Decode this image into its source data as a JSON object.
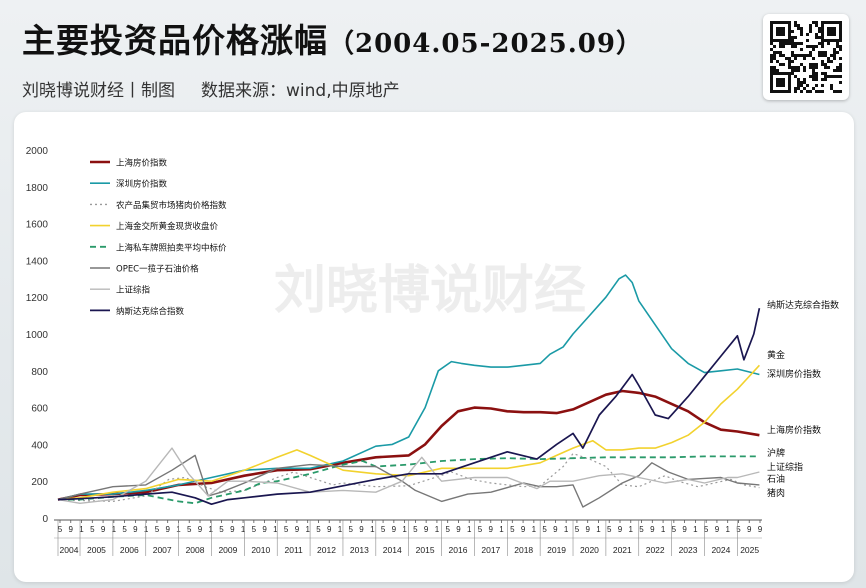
{
  "header": {
    "title": "主要投资品价格涨幅",
    "range": "（2004.05-2025.09）",
    "author": "刘晓博说财经丨制图",
    "source": "数据来源：wind,中原地产"
  },
  "watermark": "刘晓博说财经",
  "qr_icon": "qr-code-icon",
  "chart_data": {
    "type": "line",
    "title": "主要投资品价格涨幅",
    "ylim": [
      0,
      2000
    ],
    "yticks": [
      0,
      200,
      400,
      600,
      800,
      1000,
      1200,
      1400,
      1600,
      1800,
      2000
    ],
    "xlim": [
      2004.33,
      2025.75
    ],
    "years": [
      "2004",
      "2005",
      "2006",
      "2007",
      "2008",
      "2009",
      "2010",
      "2011",
      "2012",
      "2013",
      "2014",
      "2015",
      "2016",
      "2017",
      "2018",
      "2019",
      "2020",
      "2021",
      "2022",
      "2023",
      "2024",
      "2025"
    ],
    "month_marks": [
      "5",
      "9",
      "1",
      "5",
      "9",
      "1",
      "5",
      "9",
      "1",
      "5",
      "9",
      "1",
      "5",
      "9",
      "1",
      "5",
      "9",
      "1",
      "5",
      "9",
      "1",
      "5",
      "9",
      "1",
      "5",
      "9",
      "1",
      "5",
      "9",
      "1",
      "5",
      "9",
      "1",
      "5",
      "9",
      "1",
      "5",
      "9",
      "1",
      "5",
      "9",
      "1",
      "5",
      "9",
      "1",
      "5",
      "9",
      "1",
      "5",
      "9",
      "1",
      "5",
      "9",
      "1",
      "5",
      "9",
      "1",
      "5",
      "9",
      "1",
      "5",
      "9",
      "1",
      "5",
      "9",
      "9"
    ],
    "grid": false,
    "legend_position": "top-left",
    "series": [
      {
        "name": "上海房价指数",
        "color": "#8b1010",
        "width": 2.6,
        "dash": "",
        "end_label": "上海房价指数",
        "points": [
          [
            2004.33,
            100
          ],
          [
            2005.0,
            125
          ],
          [
            2006.0,
            130
          ],
          [
            2007.0,
            140
          ],
          [
            2008.0,
            180
          ],
          [
            2009.0,
            190
          ],
          [
            2010.0,
            230
          ],
          [
            2011.0,
            260
          ],
          [
            2012.0,
            265
          ],
          [
            2013.0,
            300
          ],
          [
            2014.0,
            330
          ],
          [
            2015.0,
            340
          ],
          [
            2015.5,
            400
          ],
          [
            2016.0,
            500
          ],
          [
            2016.5,
            580
          ],
          [
            2017.0,
            600
          ],
          [
            2017.5,
            595
          ],
          [
            2018.0,
            580
          ],
          [
            2018.5,
            575
          ],
          [
            2019.0,
            575
          ],
          [
            2019.5,
            570
          ],
          [
            2020.0,
            590
          ],
          [
            2020.5,
            630
          ],
          [
            2021.0,
            670
          ],
          [
            2021.5,
            690
          ],
          [
            2022.0,
            680
          ],
          [
            2022.5,
            660
          ],
          [
            2023.0,
            620
          ],
          [
            2023.5,
            580
          ],
          [
            2024.0,
            520
          ],
          [
            2024.5,
            480
          ],
          [
            2025.0,
            470
          ],
          [
            2025.67,
            450
          ]
        ]
      },
      {
        "name": "深圳房价指数",
        "color": "#1a9aa6",
        "width": 1.6,
        "dash": "",
        "end_label": "深圳房价指数",
        "points": [
          [
            2004.33,
            100
          ],
          [
            2005.0,
            130
          ],
          [
            2006.0,
            130
          ],
          [
            2007.0,
            150
          ],
          [
            2008.0,
            180
          ],
          [
            2009.0,
            220
          ],
          [
            2010.0,
            260
          ],
          [
            2011.0,
            270
          ],
          [
            2012.0,
            270
          ],
          [
            2013.0,
            310
          ],
          [
            2014.0,
            390
          ],
          [
            2014.5,
            400
          ],
          [
            2015.0,
            440
          ],
          [
            2015.5,
            600
          ],
          [
            2015.9,
            800
          ],
          [
            2016.3,
            850
          ],
          [
            2016.6,
            840
          ],
          [
            2017.0,
            830
          ],
          [
            2017.5,
            820
          ],
          [
            2018.0,
            820
          ],
          [
            2018.5,
            830
          ],
          [
            2019.0,
            840
          ],
          [
            2019.3,
            890
          ],
          [
            2019.7,
            930
          ],
          [
            2020.0,
            1000
          ],
          [
            2020.5,
            1100
          ],
          [
            2021.0,
            1200
          ],
          [
            2021.4,
            1300
          ],
          [
            2021.6,
            1320
          ],
          [
            2021.8,
            1280
          ],
          [
            2022.0,
            1180
          ],
          [
            2022.5,
            1050
          ],
          [
            2023.0,
            920
          ],
          [
            2023.5,
            840
          ],
          [
            2024.0,
            790
          ],
          [
            2024.5,
            800
          ],
          [
            2025.0,
            810
          ],
          [
            2025.67,
            780
          ]
        ]
      },
      {
        "name": "农产品集贸市场猪肉价格指数",
        "color": "#9a9a9a",
        "width": 1.2,
        "dash": "2,3",
        "end_label": "猪肉",
        "points": [
          [
            2004.33,
            100
          ],
          [
            2005.0,
            95
          ],
          [
            2006.0,
            90
          ],
          [
            2007.0,
            120
          ],
          [
            2007.7,
            210
          ],
          [
            2008.2,
            220
          ],
          [
            2008.8,
            170
          ],
          [
            2009.3,
            140
          ],
          [
            2010.0,
            150
          ],
          [
            2011.0,
            220
          ],
          [
            2011.5,
            250
          ],
          [
            2012.0,
            220
          ],
          [
            2012.7,
            180
          ],
          [
            2013.0,
            190
          ],
          [
            2014.0,
            170
          ],
          [
            2015.0,
            175
          ],
          [
            2015.8,
            220
          ],
          [
            2016.3,
            250
          ],
          [
            2016.9,
            210
          ],
          [
            2017.5,
            190
          ],
          [
            2018.0,
            180
          ],
          [
            2018.5,
            170
          ],
          [
            2019.0,
            175
          ],
          [
            2019.7,
            280
          ],
          [
            2020.0,
            350
          ],
          [
            2020.5,
            320
          ],
          [
            2021.0,
            280
          ],
          [
            2021.5,
            180
          ],
          [
            2022.0,
            170
          ],
          [
            2022.8,
            230
          ],
          [
            2023.2,
            200
          ],
          [
            2023.8,
            170
          ],
          [
            2024.3,
            190
          ],
          [
            2024.8,
            210
          ],
          [
            2025.2,
            180
          ],
          [
            2025.67,
            165
          ]
        ]
      },
      {
        "name": "上海金交所黄金现货收盘价",
        "color": "#f2d22e",
        "width": 1.6,
        "dash": "",
        "end_label": "黄金",
        "points": [
          [
            2004.33,
            100
          ],
          [
            2005.0,
            110
          ],
          [
            2006.0,
            140
          ],
          [
            2007.0,
            160
          ],
          [
            2008.0,
            210
          ],
          [
            2009.0,
            200
          ],
          [
            2010.0,
            260
          ],
          [
            2011.0,
            330
          ],
          [
            2011.6,
            370
          ],
          [
            2012.0,
            340
          ],
          [
            2013.0,
            260
          ],
          [
            2014.0,
            240
          ],
          [
            2015.0,
            230
          ],
          [
            2016.0,
            270
          ],
          [
            2017.0,
            270
          ],
          [
            2018.0,
            270
          ],
          [
            2019.0,
            300
          ],
          [
            2019.5,
            340
          ],
          [
            2020.0,
            380
          ],
          [
            2020.6,
            420
          ],
          [
            2021.0,
            370
          ],
          [
            2021.5,
            370
          ],
          [
            2022.0,
            380
          ],
          [
            2022.5,
            380
          ],
          [
            2023.0,
            410
          ],
          [
            2023.5,
            450
          ],
          [
            2024.0,
            520
          ],
          [
            2024.5,
            620
          ],
          [
            2025.0,
            700
          ],
          [
            2025.67,
            830
          ]
        ]
      },
      {
        "name": "上海私车牌照拍卖平均中标价",
        "color": "#2a9a6a",
        "width": 1.8,
        "dash": "6,4",
        "end_label": "沪牌",
        "points": [
          [
            2004.33,
            100
          ],
          [
            2005.0,
            100
          ],
          [
            2006.0,
            115
          ],
          [
            2007.0,
            125
          ],
          [
            2008.0,
            90
          ],
          [
            2008.5,
            80
          ],
          [
            2009.0,
            110
          ],
          [
            2010.0,
            150
          ],
          [
            2010.5,
            190
          ],
          [
            2011.0,
            200
          ],
          [
            2012.0,
            240
          ],
          [
            2013.0,
            290
          ],
          [
            2013.6,
            310
          ],
          [
            2014.0,
            280
          ],
          [
            2015.0,
            290
          ],
          [
            2016.0,
            310
          ],
          [
            2017.0,
            320
          ],
          [
            2018.0,
            325
          ],
          [
            2019.0,
            320
          ],
          [
            2020.0,
            325
          ],
          [
            2021.0,
            330
          ],
          [
            2022.0,
            330
          ],
          [
            2023.0,
            330
          ],
          [
            2024.0,
            335
          ],
          [
            2025.0,
            335
          ],
          [
            2025.67,
            335
          ]
        ]
      },
      {
        "name": "OPEC一揽子石油价格",
        "color": "#777777",
        "width": 1.4,
        "dash": "",
        "end_label": "石油",
        "points": [
          [
            2004.33,
            100
          ],
          [
            2005.0,
            130
          ],
          [
            2006.0,
            170
          ],
          [
            2007.0,
            180
          ],
          [
            2007.8,
            260
          ],
          [
            2008.5,
            340
          ],
          [
            2008.9,
            120
          ],
          [
            2009.3,
            140
          ],
          [
            2010.0,
            190
          ],
          [
            2011.0,
            270
          ],
          [
            2012.0,
            290
          ],
          [
            2013.0,
            280
          ],
          [
            2014.0,
            280
          ],
          [
            2014.8,
            200
          ],
          [
            2015.2,
            150
          ],
          [
            2016.0,
            90
          ],
          [
            2016.8,
            130
          ],
          [
            2017.5,
            140
          ],
          [
            2018.5,
            190
          ],
          [
            2019.0,
            170
          ],
          [
            2019.5,
            170
          ],
          [
            2020.0,
            180
          ],
          [
            2020.3,
            60
          ],
          [
            2020.8,
            110
          ],
          [
            2021.5,
            190
          ],
          [
            2022.0,
            230
          ],
          [
            2022.4,
            300
          ],
          [
            2022.9,
            250
          ],
          [
            2023.5,
            210
          ],
          [
            2024.0,
            215
          ],
          [
            2024.5,
            220
          ],
          [
            2025.0,
            190
          ],
          [
            2025.67,
            180
          ]
        ]
      },
      {
        "name": "上证综指",
        "color": "#b8b8b8",
        "width": 1.4,
        "dash": "",
        "end_label": "上证综指",
        "points": [
          [
            2004.33,
            100
          ],
          [
            2005.0,
            80
          ],
          [
            2006.0,
            100
          ],
          [
            2007.0,
            200
          ],
          [
            2007.8,
            380
          ],
          [
            2008.3,
            240
          ],
          [
            2008.9,
            120
          ],
          [
            2009.5,
            200
          ],
          [
            2010.0,
            200
          ],
          [
            2011.0,
            190
          ],
          [
            2012.0,
            140
          ],
          [
            2013.0,
            150
          ],
          [
            2014.0,
            140
          ],
          [
            2014.8,
            200
          ],
          [
            2015.4,
            330
          ],
          [
            2015.8,
            240
          ],
          [
            2016.0,
            200
          ],
          [
            2017.0,
            220
          ],
          [
            2018.0,
            220
          ],
          [
            2018.9,
            160
          ],
          [
            2019.3,
            200
          ],
          [
            2020.0,
            200
          ],
          [
            2020.8,
            230
          ],
          [
            2021.5,
            240
          ],
          [
            2022.0,
            220
          ],
          [
            2022.8,
            190
          ],
          [
            2023.5,
            210
          ],
          [
            2024.0,
            190
          ],
          [
            2024.7,
            220
          ],
          [
            2025.0,
            220
          ],
          [
            2025.67,
            250
          ]
        ]
      },
      {
        "name": "纳斯达克综合指数",
        "color": "#1a1650",
        "width": 1.7,
        "dash": "",
        "end_label": "纳斯达克综合指数",
        "points": [
          [
            2004.33,
            100
          ],
          [
            2005.0,
            105
          ],
          [
            2006.0,
            115
          ],
          [
            2007.0,
            130
          ],
          [
            2007.8,
            140
          ],
          [
            2008.5,
            110
          ],
          [
            2009.0,
            75
          ],
          [
            2009.5,
            100
          ],
          [
            2010.0,
            110
          ],
          [
            2011.0,
            130
          ],
          [
            2012.0,
            140
          ],
          [
            2013.0,
            175
          ],
          [
            2014.0,
            210
          ],
          [
            2015.0,
            240
          ],
          [
            2016.0,
            240
          ],
          [
            2017.0,
            300
          ],
          [
            2018.0,
            360
          ],
          [
            2018.9,
            320
          ],
          [
            2019.5,
            400
          ],
          [
            2020.0,
            460
          ],
          [
            2020.3,
            380
          ],
          [
            2020.8,
            560
          ],
          [
            2021.3,
            660
          ],
          [
            2021.8,
            780
          ],
          [
            2022.0,
            720
          ],
          [
            2022.5,
            560
          ],
          [
            2022.9,
            540
          ],
          [
            2023.5,
            660
          ],
          [
            2024.0,
            770
          ],
          [
            2024.5,
            880
          ],
          [
            2025.0,
            990
          ],
          [
            2025.2,
            860
          ],
          [
            2025.5,
            1000
          ],
          [
            2025.67,
            1140
          ]
        ]
      }
    ]
  }
}
